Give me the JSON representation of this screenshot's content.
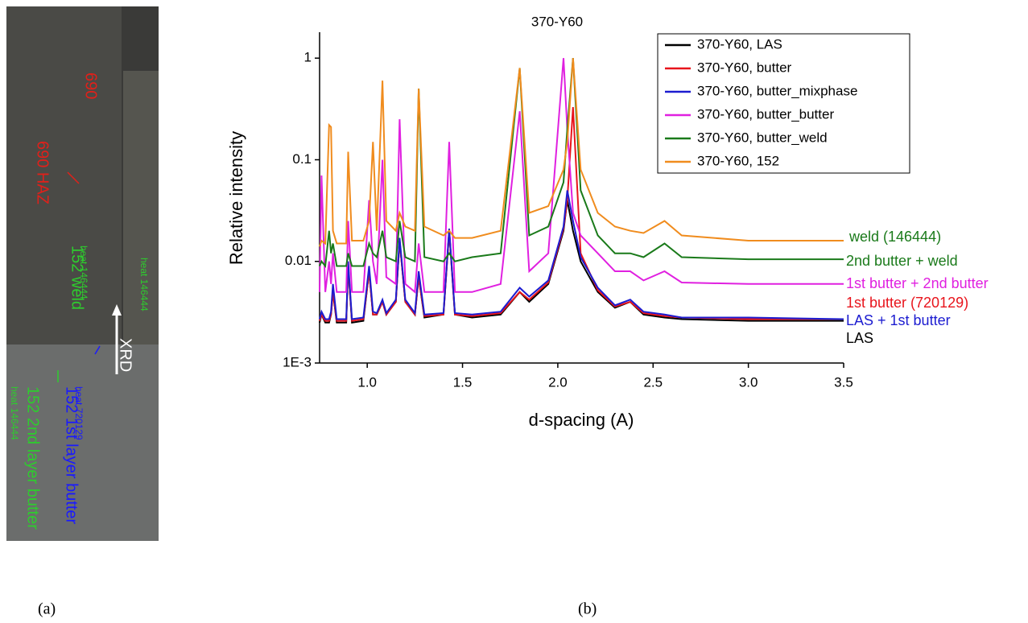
{
  "photo": {
    "labels": [
      {
        "text": "690",
        "color": "#e0201a"
      },
      {
        "text": "690 HAZ",
        "color": "#e0201a"
      },
      {
        "text": "152 weld",
        "color": "#2ecc2e"
      },
      {
        "text": "heat 146444",
        "color": "#2ecc2e"
      },
      {
        "text": "heat 146444",
        "color": "#2ecc2e"
      },
      {
        "text": "XRD",
        "color": "#ffffff"
      },
      {
        "text": "152 1st layer butter",
        "color": "#1a1aff"
      },
      {
        "text": "heat 720129",
        "color": "#1a1aff"
      },
      {
        "text": "152 2nd layer butter",
        "color": "#2ecc2e"
      },
      {
        "text": "heat 146444",
        "color": "#2ecc2e"
      }
    ]
  },
  "captions": [
    "(a)",
    "(b)"
  ],
  "chart_data": {
    "type": "line",
    "title": "370-Y60",
    "x_label": "d-spacing (A)",
    "y_label": "Relative intensity",
    "log_y": true,
    "legend": "top-right",
    "xlim": [
      0.75,
      3.5
    ],
    "ylim": [
      0.001,
      1.8
    ],
    "xticks": [
      {
        "value": 1,
        "label": "1.0"
      },
      1.5,
      {
        "value": 2,
        "label": "2.0"
      },
      2.5,
      {
        "value": 3,
        "label": "3.0"
      },
      3.5
    ],
    "yticks": [
      {
        "value": 0.001,
        "label": "1E-3"
      },
      0.01,
      0.1,
      1
    ],
    "x": [
      0.75,
      0.76,
      0.78,
      0.8,
      0.81,
      0.82,
      0.84,
      0.89,
      0.9,
      0.92,
      0.98,
      1.01,
      1.03,
      1.05,
      1.08,
      1.1,
      1.15,
      1.17,
      1.2,
      1.25,
      1.27,
      1.3,
      1.4,
      1.43,
      1.46,
      1.55,
      1.7,
      1.8,
      1.85,
      1.95,
      2.03,
      2.05,
      2.08,
      2.12,
      2.21,
      2.3,
      2.38,
      2.45,
      2.56,
      2.65,
      3.0,
      3.5
    ],
    "series": [
      {
        "name": "370-Y60, LAS",
        "color": "#000000",
        "values": [
          0.0025,
          0.003,
          0.0025,
          0.0025,
          0.003,
          0.005,
          0.0025,
          0.0025,
          0.009,
          0.0025,
          0.0026,
          0.008,
          0.003,
          0.003,
          0.004,
          0.003,
          0.004,
          0.016,
          0.004,
          0.003,
          0.007,
          0.0028,
          0.003,
          0.02,
          0.003,
          0.0028,
          0.003,
          0.005,
          0.004,
          0.006,
          0.02,
          0.04,
          0.02,
          0.01,
          0.005,
          0.0035,
          0.004,
          0.003,
          0.0028,
          0.0027,
          0.0026,
          0.0026
        ]
      },
      {
        "name": "370-Y60, butter",
        "color": "#e8141c",
        "values": [
          0.0026,
          0.003,
          0.0026,
          0.0026,
          0.003,
          0.005,
          0.0026,
          0.0026,
          0.009,
          0.0026,
          0.0027,
          0.008,
          0.003,
          0.003,
          0.004,
          0.003,
          0.004,
          0.016,
          0.004,
          0.003,
          0.007,
          0.0029,
          0.003,
          0.02,
          0.003,
          0.0029,
          0.0031,
          0.005,
          0.0042,
          0.0062,
          0.021,
          0.04,
          0.33,
          0.012,
          0.0052,
          0.0036,
          0.004,
          0.0031,
          0.0029,
          0.0028,
          0.0027,
          0.0027
        ]
      },
      {
        "name": "370-Y60, butter_mixphase",
        "color": "#1c1cd0",
        "values": [
          0.0027,
          0.0032,
          0.0027,
          0.0027,
          0.0032,
          0.006,
          0.0027,
          0.0027,
          0.01,
          0.0027,
          0.0028,
          0.009,
          0.0032,
          0.0031,
          0.0042,
          0.0031,
          0.0042,
          0.017,
          0.0042,
          0.0031,
          0.008,
          0.003,
          0.0031,
          0.021,
          0.0031,
          0.003,
          0.0032,
          0.0055,
          0.0045,
          0.0065,
          0.022,
          0.05,
          0.025,
          0.011,
          0.0055,
          0.0037,
          0.0042,
          0.0032,
          0.003,
          0.0028,
          0.0028,
          0.0027
        ]
      },
      {
        "name": "370-Y60, butter_butter",
        "color": "#e020e0",
        "values": [
          0.005,
          0.07,
          0.005,
          0.01,
          0.006,
          0.012,
          0.005,
          0.005,
          0.025,
          0.005,
          0.005,
          0.04,
          0.01,
          0.006,
          0.1,
          0.007,
          0.006,
          0.25,
          0.006,
          0.005,
          0.015,
          0.005,
          0.005,
          0.15,
          0.005,
          0.005,
          0.006,
          0.3,
          0.008,
          0.012,
          1,
          0.2,
          0.03,
          0.018,
          0.012,
          0.008,
          0.008,
          0.0065,
          0.008,
          0.0062,
          0.006,
          0.006
        ]
      },
      {
        "name": "370-Y60, butter_weld",
        "color": "#1a7a1a",
        "values": [
          0.009,
          0.01,
          0.009,
          0.02,
          0.012,
          0.015,
          0.009,
          0.009,
          0.012,
          0.009,
          0.009,
          0.015,
          0.012,
          0.011,
          0.02,
          0.011,
          0.01,
          0.025,
          0.011,
          0.01,
          0.5,
          0.011,
          0.01,
          0.012,
          0.01,
          0.011,
          0.012,
          0.8,
          0.018,
          0.022,
          0.06,
          0.2,
          1,
          0.05,
          0.018,
          0.012,
          0.012,
          0.011,
          0.015,
          0.011,
          0.0105,
          0.0105
        ]
      },
      {
        "name": "370-Y60, 152",
        "color": "#f08c1e",
        "values": [
          0.014,
          0.016,
          0.015,
          0.22,
          0.21,
          0.02,
          0.015,
          0.015,
          0.12,
          0.016,
          0.016,
          0.025,
          0.15,
          0.02,
          0.6,
          0.025,
          0.02,
          0.03,
          0.022,
          0.02,
          0.5,
          0.022,
          0.018,
          0.02,
          0.017,
          0.017,
          0.02,
          0.8,
          0.03,
          0.035,
          0.08,
          0.15,
          1,
          0.08,
          0.03,
          0.022,
          0.02,
          0.019,
          0.025,
          0.018,
          0.016,
          0.016
        ]
      }
    ],
    "annotations": [
      {
        "text": "weld (146444)",
        "color": "#1a7a1a"
      },
      {
        "text": "2nd butter + weld",
        "color": "#1a7a1a"
      },
      {
        "text": "1st butter + 2nd butter",
        "color": "#e020e0"
      },
      {
        "text": "1st butter (720129)",
        "color": "#e8141c"
      },
      {
        "text": "LAS + 1st butter",
        "color": "#1c1cd0"
      },
      {
        "text": "LAS",
        "color": "#000000"
      }
    ]
  }
}
